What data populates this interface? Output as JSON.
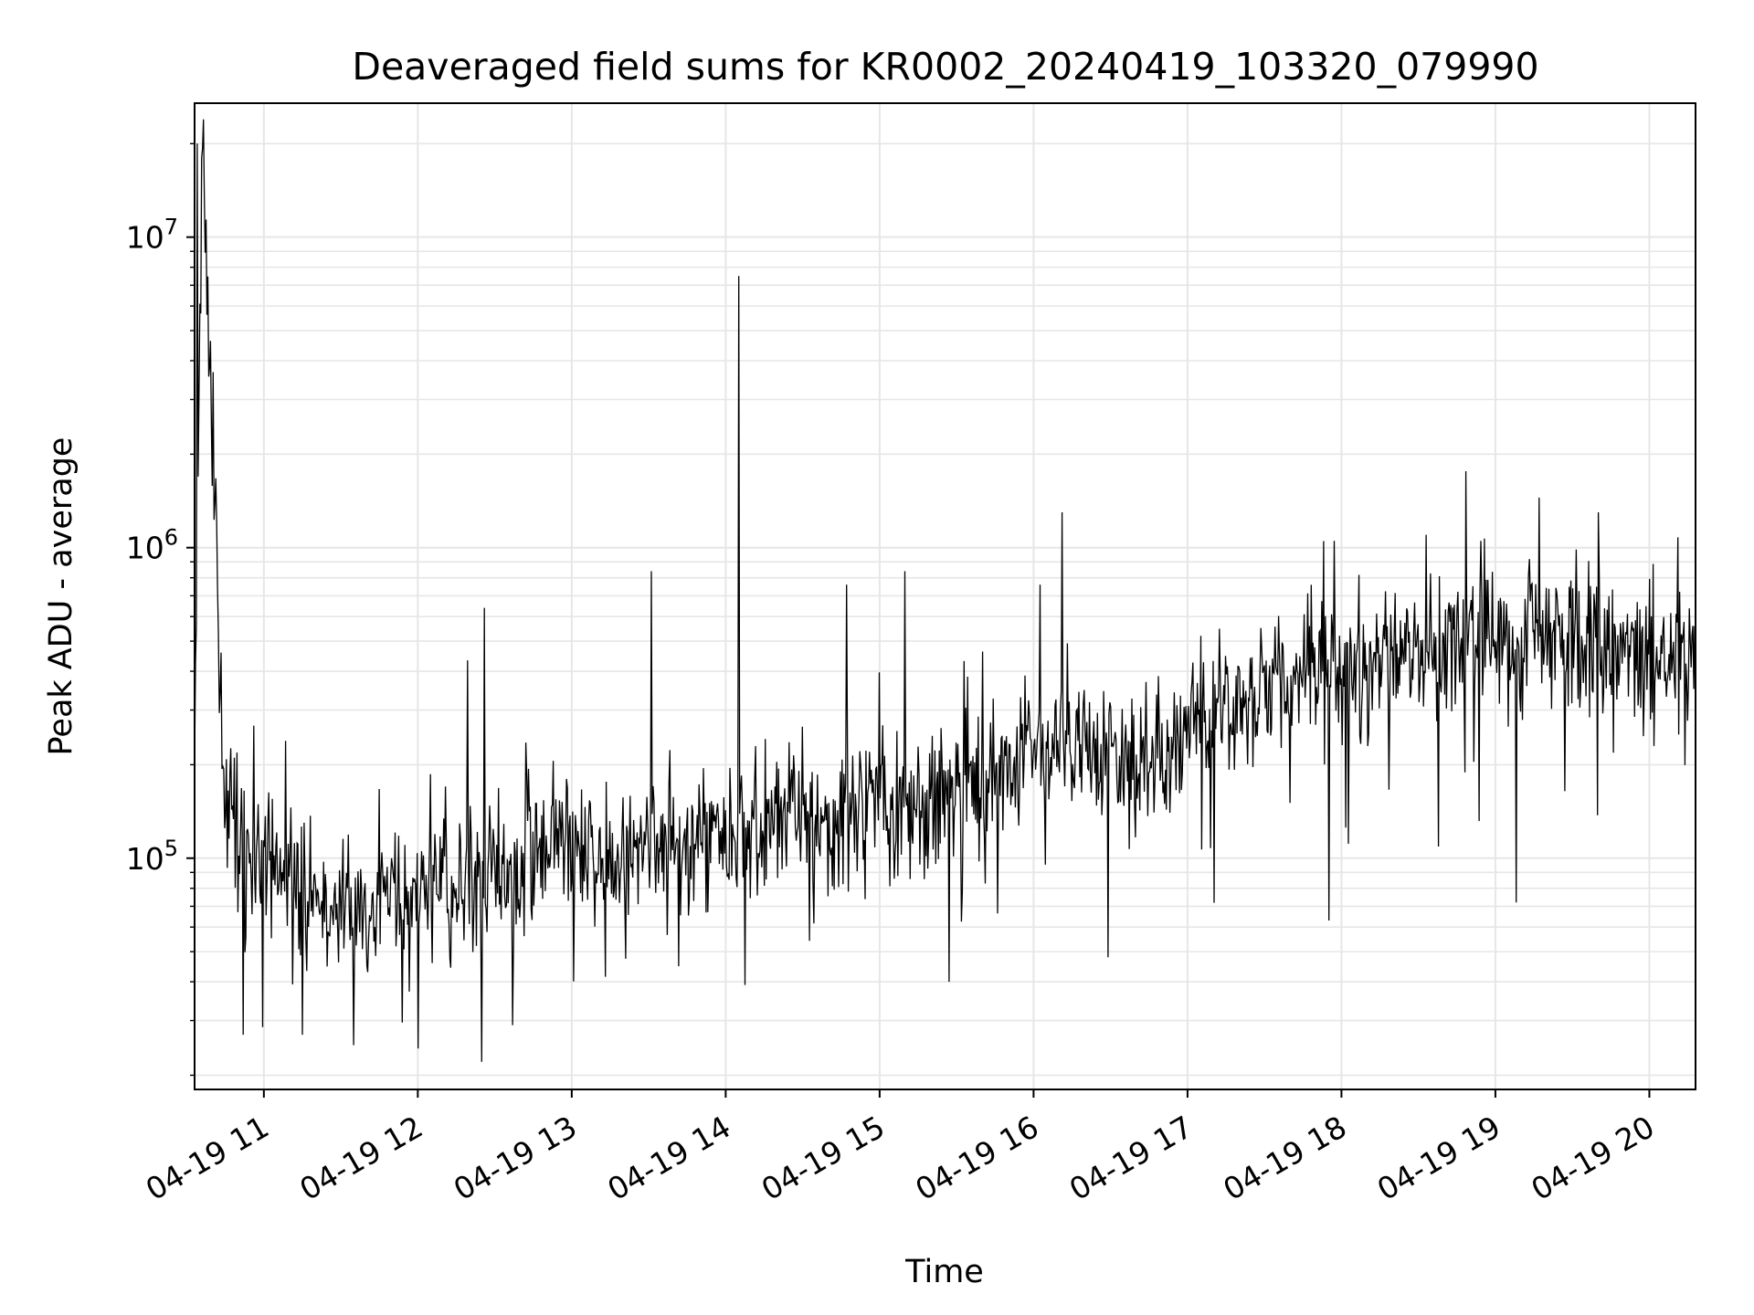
{
  "chart_data": {
    "type": "line",
    "title": "Deaveraged field sums for KR0002_20240419_103320_079990",
    "xlabel": "Time",
    "ylabel": "Peak ADU - average",
    "yscale": "log",
    "xlim": [
      "2024-04-19 10:33",
      "2024-04-19 20:18"
    ],
    "ylim": [
      18000,
      27000000
    ],
    "grid": true,
    "line_color": "#000000",
    "grid_color": "#e6e6e6",
    "x_ticks": [
      "04-19 11",
      "04-19 12",
      "04-19 13",
      "04-19 14",
      "04-19 15",
      "04-19 16",
      "04-19 17",
      "04-19 18",
      "04-19 19",
      "04-19 20"
    ],
    "y_ticks": [
      {
        "value": 100000,
        "base": "10",
        "exp": "5"
      },
      {
        "value": 1000000,
        "base": "10",
        "exp": "6"
      },
      {
        "value": 10000000,
        "base": "10",
        "exp": "7"
      }
    ],
    "series": [
      {
        "x": [
          "2024-04-19 10:33",
          "2024-04-19 10:36",
          "2024-04-19 10:45",
          "2024-04-19 11:00",
          "2024-04-19 11:15",
          "2024-04-19 11:30",
          "2024-04-19 11:45",
          "2024-04-19 12:00",
          "2024-04-19 12:15",
          "2024-04-19 12:30",
          "2024-04-19 12:45",
          "2024-04-19 13:00",
          "2024-04-19 13:15",
          "2024-04-19 13:30",
          "2024-04-19 13:45",
          "2024-04-19 14:00",
          "2024-04-19 14:15",
          "2024-04-19 14:30",
          "2024-04-19 14:45",
          "2024-04-19 15:00",
          "2024-04-19 15:15",
          "2024-04-19 15:30",
          "2024-04-19 15:45",
          "2024-04-19 16:00",
          "2024-04-19 16:15",
          "2024-04-19 16:30",
          "2024-04-19 16:45",
          "2024-04-19 17:00",
          "2024-04-19 17:15",
          "2024-04-19 17:30",
          "2024-04-19 17:45",
          "2024-04-19 18:00",
          "2024-04-19 18:15",
          "2024-04-19 18:30",
          "2024-04-19 18:45",
          "2024-04-19 19:00",
          "2024-04-19 19:15",
          "2024-04-19 19:30",
          "2024-04-19 19:45",
          "2024-04-19 20:00",
          "2024-04-19 20:18"
        ],
        "y": [
          250000,
          20000000,
          150000,
          90000,
          80000,
          65000,
          70000,
          75000,
          85000,
          95000,
          100000,
          110000,
          95000,
          110000,
          120000,
          120000,
          130000,
          135000,
          140000,
          150000,
          150000,
          165000,
          190000,
          230000,
          230000,
          220000,
          210000,
          260000,
          300000,
          350000,
          400000,
          380000,
          420000,
          470000,
          500000,
          480000,
          500000,
          480000,
          470000,
          440000,
          450000
        ],
        "noise": 0.33,
        "spikes": [
          {
            "x": "2024-04-19 10:34",
            "y": 20000000
          },
          {
            "x": "2024-04-19 14:05",
            "y": 7500000
          },
          {
            "x": "2024-04-19 16:11",
            "y": 1300000
          },
          {
            "x": "2024-04-19 19:17",
            "y": 1450000
          },
          {
            "x": "2024-04-19 13:31",
            "y": 840000
          },
          {
            "x": "2024-04-19 14:47",
            "y": 760000
          },
          {
            "x": "2024-04-19 15:10",
            "y": 840000
          },
          {
            "x": "2024-04-19 12:26",
            "y": 640000
          },
          {
            "x": "2024-04-19 18:33",
            "y": 1100000
          },
          {
            "x": "2024-04-19 19:40",
            "y": 1300000
          },
          {
            "x": "2024-04-19 17:53",
            "y": 1050000
          }
        ],
        "dips": [
          {
            "x": "2024-04-19 11:35",
            "y": 25000
          },
          {
            "x": "2024-04-19 11:15",
            "y": 27000
          },
          {
            "x": "2024-04-19 10:52",
            "y": 27000
          },
          {
            "x": "2024-04-19 12:37",
            "y": 29000
          },
          {
            "x": "2024-04-19 15:27",
            "y": 40000
          },
          {
            "x": "2024-04-19 16:29",
            "y": 48000
          },
          {
            "x": "2024-04-19 17:55",
            "y": 63000
          },
          {
            "x": "2024-04-19 19:08",
            "y": 72000
          }
        ]
      }
    ]
  }
}
